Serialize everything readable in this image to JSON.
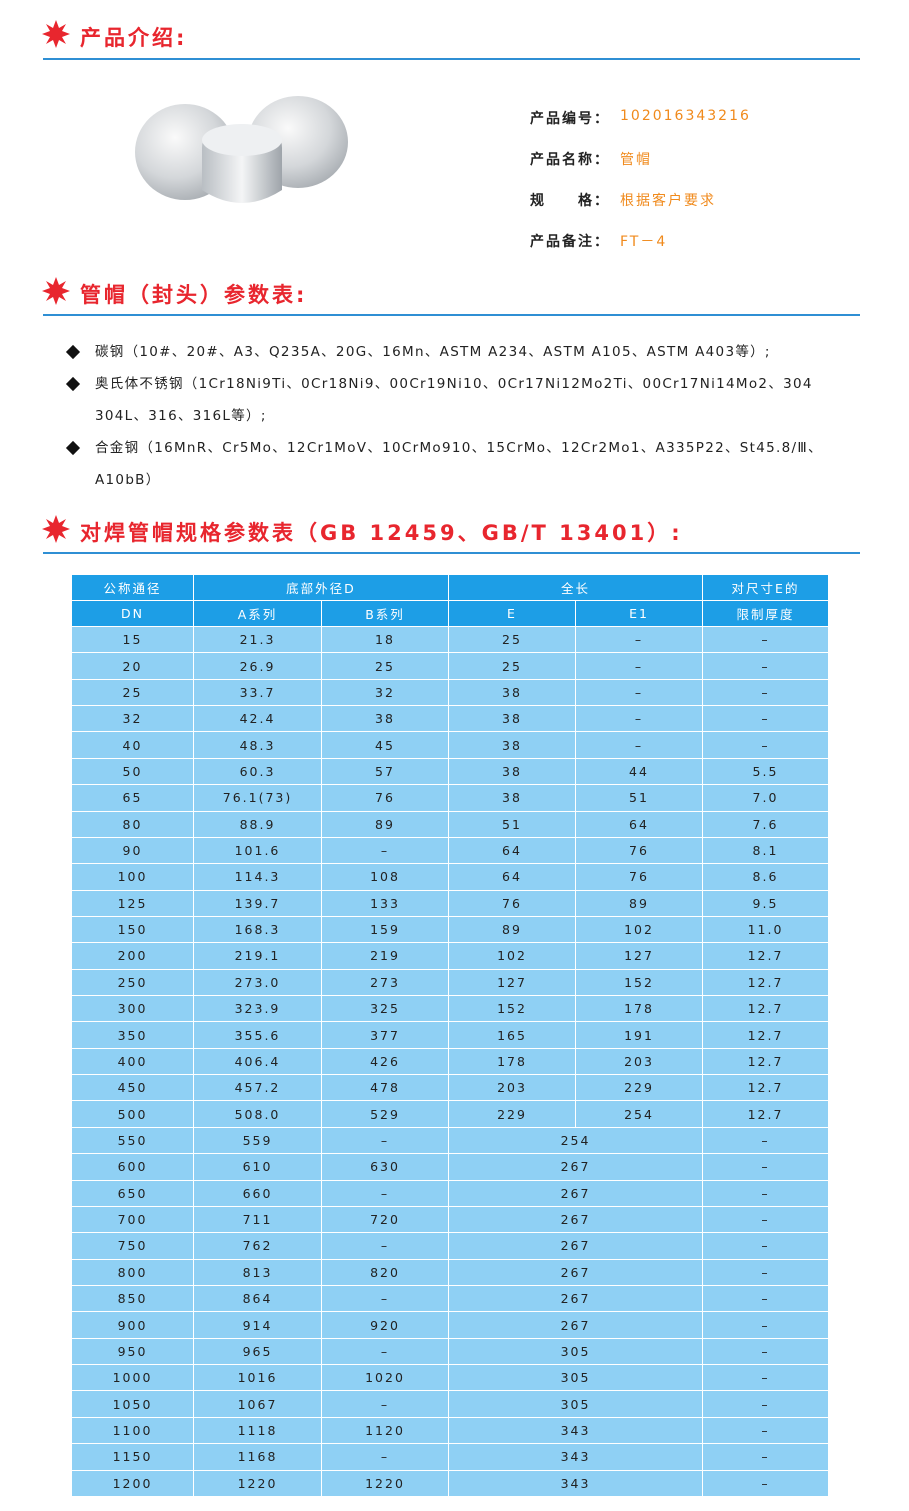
{
  "intro": {
    "title": "产品介绍:",
    "fields": [
      {
        "label": "产品编号：",
        "value": "102016343216"
      },
      {
        "label": "产品名称：",
        "value": "管帽"
      },
      {
        "label": "规　　格：",
        "value": "根据客户要求"
      },
      {
        "label": "产品备注：",
        "value": "FT－4"
      }
    ]
  },
  "materials": {
    "title": "管帽（封头）参数表:",
    "items": [
      "碳钢（10#、20#、A3、Q235A、20G、16Mn、ASTM A234、ASTM A105、ASTM A403等）;",
      "奥氏体不锈钢（1Cr18Ni9Ti、0Cr18Ni9、00Cr19Ni10、0Cr17Ni12Mo2Ti、00Cr17Ni14Mo2、304 304L、316、316L等）;",
      "合金钢（16MnR、Cr5Mo、12Cr1MoV、10CrMo910、15CrMo、12Cr2Mo1、A335P22、St45.8/Ⅲ、A10bB）"
    ]
  },
  "table": {
    "title": "对焊管帽规格参数表（GB 12459、GB/T 13401）:",
    "header": {
      "dn": [
        "公称通径",
        "DN"
      ],
      "od": "底部外径D",
      "od_a": "A系列",
      "od_b": "B系列",
      "length": "全长",
      "e": "E",
      "e1": "E1",
      "limit": [
        "对尺寸E的",
        "限制厚度"
      ]
    },
    "rows": [
      [
        "15",
        "21.3",
        "18",
        "25",
        "–",
        "–"
      ],
      [
        "20",
        "26.9",
        "25",
        "25",
        "–",
        "–"
      ],
      [
        "25",
        "33.7",
        "32",
        "38",
        "–",
        "–"
      ],
      [
        "32",
        "42.4",
        "38",
        "38",
        "–",
        "–"
      ],
      [
        "40",
        "48.3",
        "45",
        "38",
        "–",
        "–"
      ],
      [
        "50",
        "60.3",
        "57",
        "38",
        "44",
        "5.5"
      ],
      [
        "65",
        "76.1(73)",
        "76",
        "38",
        "51",
        "7.0"
      ],
      [
        "80",
        "88.9",
        "89",
        "51",
        "64",
        "7.6"
      ],
      [
        "90",
        "101.6",
        "–",
        "64",
        "76",
        "8.1"
      ],
      [
        "100",
        "114.3",
        "108",
        "64",
        "76",
        "8.6"
      ],
      [
        "125",
        "139.7",
        "133",
        "76",
        "89",
        "9.5"
      ],
      [
        "150",
        "168.3",
        "159",
        "89",
        "102",
        "11.0"
      ],
      [
        "200",
        "219.1",
        "219",
        "102",
        "127",
        "12.7"
      ],
      [
        "250",
        "273.0",
        "273",
        "127",
        "152",
        "12.7"
      ],
      [
        "300",
        "323.9",
        "325",
        "152",
        "178",
        "12.7"
      ],
      [
        "350",
        "355.6",
        "377",
        "165",
        "191",
        "12.7"
      ],
      [
        "400",
        "406.4",
        "426",
        "178",
        "203",
        "12.7"
      ],
      [
        "450",
        "457.2",
        "478",
        "203",
        "229",
        "12.7"
      ],
      [
        "500",
        "508.0",
        "529",
        "229",
        "254",
        "12.7"
      ],
      [
        "550",
        "559",
        "–",
        "254",
        "–"
      ],
      [
        "600",
        "610",
        "630",
        "267",
        "–"
      ],
      [
        "650",
        "660",
        "–",
        "267",
        "–"
      ],
      [
        "700",
        "711",
        "720",
        "267",
        "–"
      ],
      [
        "750",
        "762",
        "–",
        "267",
        "–"
      ],
      [
        "800",
        "813",
        "820",
        "267",
        "–"
      ],
      [
        "850",
        "864",
        "–",
        "267",
        "–"
      ],
      [
        "900",
        "914",
        "920",
        "267",
        "–"
      ],
      [
        "950",
        "965",
        "–",
        "305",
        "–"
      ],
      [
        "1000",
        "1016",
        "1020",
        "305",
        "–"
      ],
      [
        "1050",
        "1067",
        "–",
        "305",
        "–"
      ],
      [
        "1100",
        "1118",
        "1120",
        "343",
        "–"
      ],
      [
        "1150",
        "1168",
        "–",
        "343",
        "–"
      ],
      [
        "1200",
        "1220",
        "1220",
        "343",
        "–"
      ]
    ]
  }
}
